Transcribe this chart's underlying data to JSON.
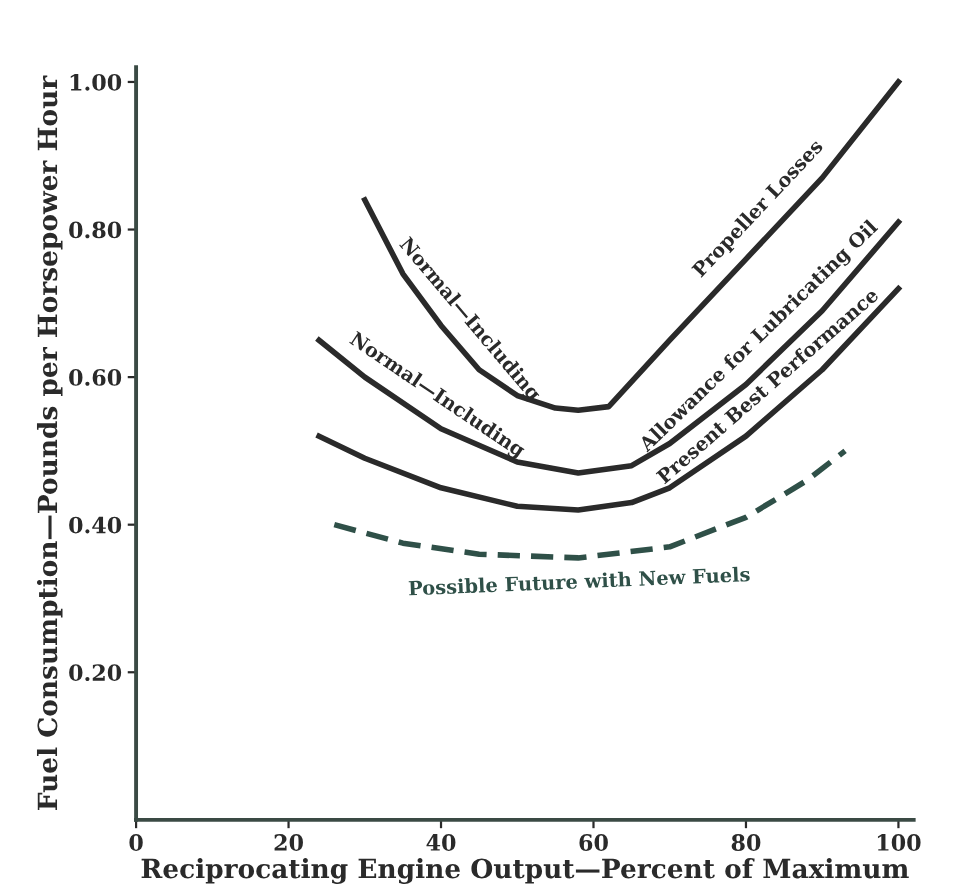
{
  "chart_data": {
    "type": "line",
    "xlabel": "Reciprocating Engine Output—Percent of Maximum",
    "ylabel": "Fuel Consumption—Pounds per Horsepower Hour",
    "xlim": [
      0,
      102
    ],
    "ylim": [
      0,
      1.02
    ],
    "xticks": [
      0,
      20,
      40,
      60,
      80,
      100
    ],
    "yticks": [
      {
        "value": 0.2,
        "label": "0.20"
      },
      {
        "value": 0.4,
        "label": "0.40"
      },
      {
        "value": 0.6,
        "label": "0.60"
      },
      {
        "value": 0.8,
        "label": "0.80"
      },
      {
        "value": 1.0,
        "label": "1.00"
      }
    ],
    "grid": false,
    "marker": "none",
    "series": [
      {
        "name": "Normal—Including Propeller Losses",
        "color": "#2a2a2a",
        "line_style": "solid",
        "x": [
          30,
          35,
          40,
          45,
          50,
          55,
          58,
          62,
          70,
          80,
          90,
          100
        ],
        "values": [
          0.84,
          0.74,
          0.67,
          0.61,
          0.575,
          0.558,
          0.555,
          0.56,
          0.65,
          0.76,
          0.87,
          1.0
        ]
      },
      {
        "name": "Normal—Including Allowance for Lubricating Oil",
        "color": "#2a2a2a",
        "line_style": "solid",
        "x": [
          24,
          30,
          40,
          50,
          58,
          65,
          70,
          80,
          90,
          100
        ],
        "values": [
          0.65,
          0.6,
          0.53,
          0.485,
          0.47,
          0.48,
          0.51,
          0.59,
          0.69,
          0.81
        ]
      },
      {
        "name": "Present Best Performance",
        "color": "#2a2a2a",
        "line_style": "solid",
        "x": [
          24,
          30,
          40,
          50,
          58,
          65,
          70,
          80,
          90,
          100
        ],
        "values": [
          0.52,
          0.49,
          0.45,
          0.425,
          0.42,
          0.43,
          0.45,
          0.52,
          0.61,
          0.72
        ]
      },
      {
        "name": "Possible Future with New Fuels",
        "color": "#2f5048",
        "line_style": "dashed",
        "x": [
          26,
          35,
          45,
          58,
          70,
          80,
          88,
          93
        ],
        "values": [
          0.4,
          0.375,
          0.36,
          0.355,
          0.37,
          0.41,
          0.46,
          0.5
        ]
      }
    ]
  }
}
